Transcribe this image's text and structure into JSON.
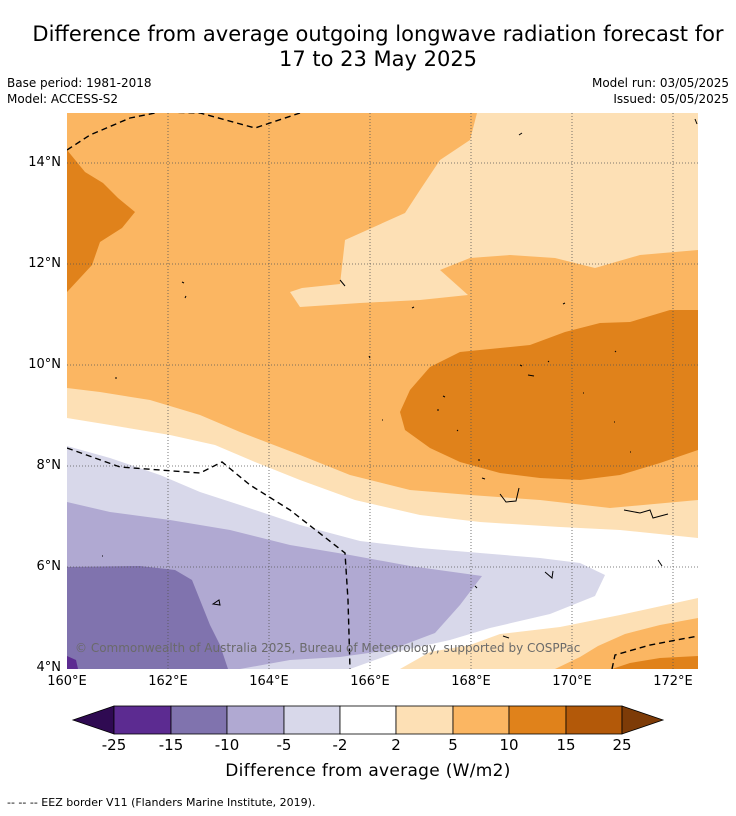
{
  "title_line1": "Difference from average outgoing longwave radiation forecast for",
  "title_line2": "17 to 23 May 2025",
  "base_period": "Base period: 1981-2018",
  "model": "Model: ACCESS-S2",
  "model_run": "Model run: 03/05/2025",
  "issued": "Issued: 05/05/2025",
  "lat_labels": [
    "14°N",
    "12°N",
    "10°N",
    "8°N",
    "6°N",
    "4°N"
  ],
  "lon_labels": [
    "160°E",
    "162°E",
    "164°E",
    "166°E",
    "168°E",
    "170°E",
    "172°E"
  ],
  "copyright": "© Commonwealth of Australia 2025, Bureau of Meteorology, supported by COSPPac",
  "colorbar": {
    "tick_labels": [
      "-25",
      "-15",
      "-10",
      "-5",
      "-2",
      "2",
      "5",
      "10",
      "15",
      "25"
    ],
    "colors": [
      "#2f0a52",
      "#5c2b91",
      "#8073ae",
      "#b0a9d2",
      "#d8d8ea",
      "#ffffff",
      "#fde0b5",
      "#fbb662",
      "#e0821b",
      "#b35909",
      "#7d3b07"
    ],
    "label": "Difference from average (W/m2)"
  },
  "legend_note": "--  --  -- EEZ border V11 (Flanders Marine Institute, 2019)."
}
